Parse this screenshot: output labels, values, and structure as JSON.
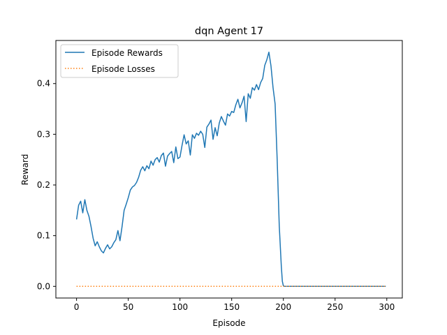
{
  "chart_data": {
    "type": "line",
    "title": "dqn Agent 17",
    "xlabel": "Episode",
    "ylabel": "Reward",
    "xlim": [
      -20,
      315
    ],
    "ylim": [
      -0.023,
      0.485
    ],
    "x_ticks": [
      0,
      50,
      100,
      150,
      200,
      250,
      300
    ],
    "y_ticks": [
      0.0,
      0.1,
      0.2,
      0.3,
      0.4
    ],
    "x_tick_labels": [
      "0",
      "50",
      "100",
      "150",
      "200",
      "250",
      "300"
    ],
    "y_tick_labels": [
      "0.0",
      "0.1",
      "0.2",
      "0.3",
      "0.4"
    ],
    "grid": false,
    "legend_position": "top-left",
    "series": [
      {
        "name": "Episode Rewards",
        "style": "solid",
        "color": "#1f77b4",
        "x": [
          0,
          2,
          4,
          6,
          8,
          10,
          12,
          14,
          16,
          18,
          20,
          22,
          24,
          26,
          28,
          30,
          32,
          34,
          36,
          38,
          40,
          42,
          44,
          46,
          48,
          50,
          52,
          54,
          56,
          58,
          60,
          62,
          64,
          66,
          68,
          70,
          72,
          74,
          76,
          78,
          80,
          82,
          84,
          86,
          88,
          90,
          92,
          94,
          96,
          98,
          100,
          102,
          104,
          106,
          108,
          110,
          112,
          114,
          116,
          118,
          120,
          122,
          124,
          126,
          128,
          130,
          132,
          134,
          136,
          138,
          140,
          142,
          144,
          146,
          148,
          150,
          152,
          154,
          156,
          158,
          160,
          162,
          164,
          166,
          168,
          170,
          172,
          174,
          176,
          178,
          180,
          182,
          184,
          186,
          188,
          190,
          192,
          194,
          196,
          198,
          199,
          200,
          201,
          250,
          299
        ],
        "y": [
          0.132,
          0.16,
          0.168,
          0.145,
          0.171,
          0.15,
          0.138,
          0.118,
          0.095,
          0.08,
          0.088,
          0.078,
          0.07,
          0.066,
          0.075,
          0.082,
          0.074,
          0.078,
          0.086,
          0.092,
          0.11,
          0.09,
          0.118,
          0.15,
          0.162,
          0.175,
          0.19,
          0.196,
          0.199,
          0.205,
          0.215,
          0.229,
          0.236,
          0.228,
          0.238,
          0.232,
          0.247,
          0.239,
          0.25,
          0.254,
          0.245,
          0.258,
          0.263,
          0.237,
          0.257,
          0.262,
          0.266,
          0.244,
          0.275,
          0.252,
          0.255,
          0.278,
          0.299,
          0.281,
          0.287,
          0.259,
          0.299,
          0.292,
          0.302,
          0.298,
          0.306,
          0.3,
          0.274,
          0.314,
          0.32,
          0.328,
          0.29,
          0.313,
          0.297,
          0.322,
          0.335,
          0.326,
          0.318,
          0.34,
          0.336,
          0.345,
          0.343,
          0.358,
          0.369,
          0.352,
          0.362,
          0.375,
          0.325,
          0.38,
          0.371,
          0.392,
          0.387,
          0.398,
          0.388,
          0.402,
          0.41,
          0.436,
          0.447,
          0.462,
          0.435,
          0.392,
          0.36,
          0.25,
          0.12,
          0.04,
          0.01,
          0.001,
          0.0,
          0.0,
          0.0
        ]
      },
      {
        "name": "Episode Losses",
        "style": "dotted",
        "color": "#ff7f0e",
        "x": [
          0,
          299
        ],
        "y": [
          0.0,
          0.0
        ]
      }
    ]
  }
}
